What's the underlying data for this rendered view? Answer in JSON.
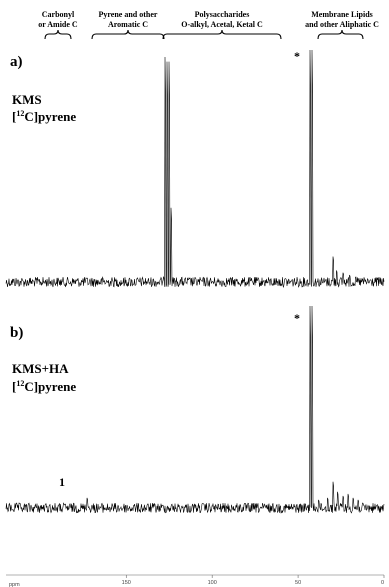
{
  "chart_data": {
    "type": "line",
    "x_axis": {
      "reversed": true,
      "range": [
        0,
        220
      ],
      "tick_values": [
        0,
        50,
        100,
        150
      ],
      "tick_labels": [
        "0",
        "50",
        "100",
        "150"
      ],
      "xlabel": "ppm"
    },
    "regions": [
      {
        "line1": "Carbonyl",
        "line2": "or Amide C",
        "from": 185,
        "to": 165
      },
      {
        "line1": "Pyrene and other",
        "line2": "Aromatic C",
        "from": 145,
        "to": 108
      },
      {
        "line1": "Polysaccharides",
        "line2": "O-alkyl, Acetal, Ketal C",
        "from": 112,
        "to": 52
      },
      {
        "line1": "Membrane Lipids",
        "line2": "and other Aliphatic C",
        "from": 38,
        "to": 10
      }
    ],
    "panels": [
      {
        "letter": "a)",
        "sample_line1": "KMS",
        "sample_prefix": "[",
        "sample_sup": "12",
        "sample_suffix": "C]pyrene",
        "star": "*",
        "peaks": [
          {
            "ppm": 127.5,
            "height": 0.97
          },
          {
            "ppm": 126.2,
            "height": 0.95
          },
          {
            "ppm": 125.0,
            "height": 0.95
          },
          {
            "ppm": 124.0,
            "height": 0.32
          },
          {
            "ppm": 43.0,
            "height": 1.0
          },
          {
            "ppm": 41.8,
            "height": 1.0
          },
          {
            "ppm": 29.8,
            "height": 0.11
          },
          {
            "ppm": 27.5,
            "height": 0.05
          },
          {
            "ppm": 24.0,
            "height": 0.04
          },
          {
            "ppm": 20.0,
            "height": 0.03
          }
        ]
      },
      {
        "letter": "b)",
        "sample_line1": "KMS+HA",
        "sample_prefix": "[",
        "sample_sup": "12",
        "sample_suffix": "C]pyrene",
        "star": "*",
        "peak_label": "1",
        "peak_label_ppm": 173,
        "peaks": [
          {
            "ppm": 173.0,
            "height": 0.05
          },
          {
            "ppm": 43.0,
            "height": 1.0
          },
          {
            "ppm": 41.8,
            "height": 1.0
          },
          {
            "ppm": 38.0,
            "height": 0.04
          },
          {
            "ppm": 33.0,
            "height": 0.05
          },
          {
            "ppm": 29.8,
            "height": 0.13
          },
          {
            "ppm": 27.0,
            "height": 0.08
          },
          {
            "ppm": 24.0,
            "height": 0.06
          },
          {
            "ppm": 21.0,
            "height": 0.07
          },
          {
            "ppm": 18.0,
            "height": 0.05
          },
          {
            "ppm": 15.0,
            "height": 0.04
          }
        ]
      }
    ]
  }
}
